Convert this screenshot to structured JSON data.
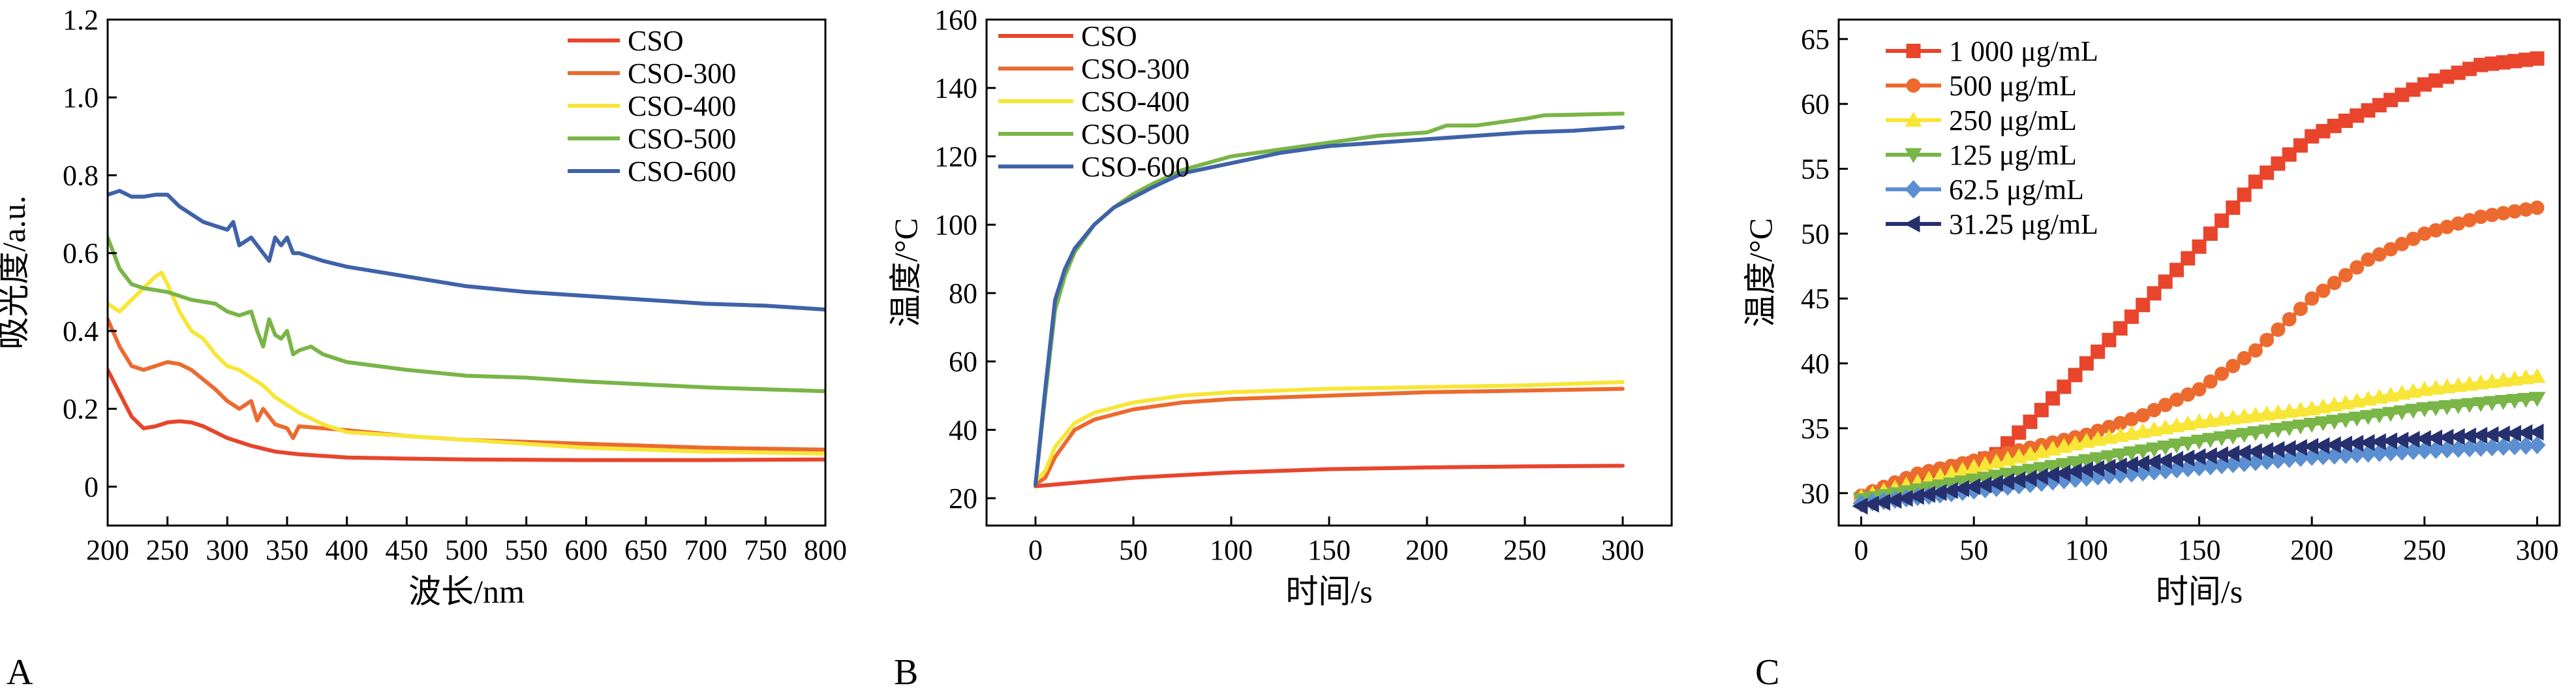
{
  "chart_data": [
    {
      "panel": "A",
      "type": "line",
      "xlabel": "波长/nm",
      "ylabel": "吸光度/a.u.",
      "xlim": [
        200,
        800
      ],
      "ylim": [
        -0.1,
        1.2
      ],
      "xticks": [
        200,
        250,
        300,
        350,
        400,
        450,
        500,
        550,
        600,
        650,
        700,
        750,
        800
      ],
      "yticks": [
        0,
        0.2,
        0.4,
        0.6,
        0.8,
        1.0,
        1.2
      ],
      "ytick_labels": [
        "0",
        "0.2",
        "0.4",
        "0.6",
        "0.8",
        "1.0",
        "1.2"
      ],
      "legend_position": "top-right",
      "colors": [
        "#e8452c",
        "#ec6a2e",
        "#f7e636",
        "#79b547",
        "#3f62a9"
      ],
      "series": [
        {
          "name": "CSO",
          "x": [
            200,
            210,
            220,
            230,
            240,
            250,
            260,
            270,
            280,
            290,
            300,
            320,
            340,
            360,
            400,
            450,
            500,
            600,
            700,
            800
          ],
          "y": [
            0.3,
            0.24,
            0.18,
            0.15,
            0.155,
            0.165,
            0.168,
            0.165,
            0.155,
            0.14,
            0.125,
            0.105,
            0.09,
            0.083,
            0.075,
            0.072,
            0.07,
            0.068,
            0.068,
            0.07
          ]
        },
        {
          "name": "CSO-300",
          "x": [
            200,
            210,
            220,
            230,
            240,
            250,
            260,
            270,
            280,
            290,
            300,
            310,
            320,
            325,
            330,
            340,
            350,
            355,
            360,
            380,
            400,
            450,
            500,
            600,
            700,
            800
          ],
          "y": [
            0.43,
            0.36,
            0.31,
            0.3,
            0.31,
            0.32,
            0.315,
            0.3,
            0.275,
            0.25,
            0.22,
            0.2,
            0.22,
            0.17,
            0.2,
            0.16,
            0.15,
            0.125,
            0.155,
            0.15,
            0.145,
            0.13,
            0.12,
            0.11,
            0.1,
            0.095
          ]
        },
        {
          "name": "CSO-400",
          "x": [
            200,
            210,
            220,
            230,
            240,
            245,
            250,
            260,
            270,
            280,
            290,
            300,
            310,
            320,
            330,
            340,
            350,
            360,
            380,
            400,
            450,
            500,
            600,
            700,
            800
          ],
          "y": [
            0.47,
            0.45,
            0.48,
            0.51,
            0.54,
            0.55,
            0.52,
            0.45,
            0.4,
            0.38,
            0.34,
            0.31,
            0.3,
            0.28,
            0.26,
            0.23,
            0.21,
            0.19,
            0.16,
            0.14,
            0.13,
            0.12,
            0.1,
            0.09,
            0.085
          ]
        },
        {
          "name": "CSO-500",
          "x": [
            200,
            210,
            220,
            230,
            250,
            270,
            290,
            300,
            310,
            320,
            325,
            330,
            335,
            340,
            345,
            350,
            355,
            360,
            370,
            380,
            400,
            450,
            500,
            550,
            600,
            700,
            800
          ],
          "y": [
            0.64,
            0.56,
            0.52,
            0.51,
            0.5,
            0.48,
            0.47,
            0.45,
            0.44,
            0.45,
            0.4,
            0.36,
            0.43,
            0.39,
            0.38,
            0.4,
            0.34,
            0.35,
            0.36,
            0.34,
            0.32,
            0.3,
            0.285,
            0.28,
            0.27,
            0.255,
            0.245
          ]
        },
        {
          "name": "CSO-600",
          "x": [
            200,
            210,
            220,
            230,
            240,
            250,
            260,
            270,
            280,
            290,
            300,
            305,
            310,
            320,
            330,
            335,
            340,
            345,
            350,
            355,
            360,
            380,
            400,
            450,
            500,
            550,
            600,
            650,
            700,
            750,
            800
          ],
          "y": [
            0.75,
            0.76,
            0.745,
            0.745,
            0.75,
            0.75,
            0.72,
            0.7,
            0.68,
            0.67,
            0.66,
            0.68,
            0.62,
            0.64,
            0.6,
            0.58,
            0.64,
            0.62,
            0.64,
            0.6,
            0.6,
            0.58,
            0.565,
            0.54,
            0.515,
            0.5,
            0.49,
            0.48,
            0.47,
            0.465,
            0.455
          ]
        }
      ]
    },
    {
      "panel": "B",
      "type": "line",
      "xlabel": "时间/s",
      "ylabel": "温度/°C",
      "xlim": [
        -25,
        325
      ],
      "ylim": [
        12,
        160
      ],
      "xticks": [
        0,
        50,
        100,
        150,
        200,
        250,
        300
      ],
      "yticks": [
        20,
        40,
        60,
        80,
        100,
        120,
        140,
        160
      ],
      "ytick_labels": [
        "20",
        "40",
        "60",
        "80",
        "100",
        "120",
        "140",
        "160"
      ],
      "legend_position": "top-left",
      "colors": [
        "#e8452c",
        "#ec6a2e",
        "#f7e636",
        "#79b547",
        "#3f62a9"
      ],
      "series": [
        {
          "name": "CSO",
          "x": [
            0,
            20,
            50,
            100,
            150,
            200,
            250,
            300
          ],
          "y": [
            23.5,
            24.5,
            26,
            27.5,
            28.5,
            29,
            29.3,
            29.5
          ]
        },
        {
          "name": "CSO-300",
          "x": [
            0,
            5,
            10,
            20,
            30,
            50,
            75,
            100,
            150,
            200,
            250,
            300
          ],
          "y": [
            24,
            26,
            32,
            40,
            43,
            46,
            48,
            49,
            50,
            51,
            51.5,
            52
          ]
        },
        {
          "name": "CSO-400",
          "x": [
            0,
            5,
            10,
            20,
            30,
            50,
            75,
            100,
            150,
            200,
            250,
            300
          ],
          "y": [
            25,
            28,
            35,
            42,
            45,
            48,
            50,
            51,
            52,
            52.5,
            53,
            54
          ]
        },
        {
          "name": "CSO-500",
          "x": [
            0,
            5,
            10,
            15,
            20,
            30,
            40,
            50,
            60,
            75,
            100,
            125,
            150,
            175,
            200,
            210,
            225,
            250,
            260,
            300
          ],
          "y": [
            24,
            50,
            75,
            85,
            92,
            100,
            105,
            109,
            112,
            116,
            120,
            122,
            124,
            126,
            127,
            129,
            129,
            131,
            132,
            132.5
          ]
        },
        {
          "name": "CSO-600",
          "x": [
            0,
            5,
            10,
            15,
            20,
            30,
            40,
            50,
            60,
            75,
            100,
            125,
            150,
            175,
            200,
            225,
            250,
            275,
            300
          ],
          "y": [
            24,
            52,
            78,
            87,
            93,
            100,
            105,
            108,
            111,
            115,
            118,
            121,
            123,
            124,
            125,
            126,
            127,
            127.5,
            128.5
          ]
        }
      ]
    },
    {
      "panel": "C",
      "type": "line",
      "xlabel": "时间/s",
      "ylabel": "温度/°C",
      "xlim": [
        -10,
        310
      ],
      "ylim": [
        27.5,
        66.5
      ],
      "xticks": [
        0,
        50,
        100,
        150,
        200,
        250,
        300
      ],
      "yticks": [
        30,
        35,
        40,
        45,
        50,
        55,
        60,
        65
      ],
      "ytick_labels": [
        "30",
        "35",
        "40",
        "45",
        "50",
        "55",
        "60",
        "65"
      ],
      "legend_position": "top-left",
      "colors": [
        "#e8452c",
        "#ec6a2e",
        "#f7e636",
        "#79b547",
        "#5b8fd1",
        "#27306e"
      ],
      "markers": [
        "square",
        "circle",
        "triangle-up",
        "triangle-down",
        "diamond",
        "triangle-left"
      ],
      "series": [
        {
          "name": "1 000 μg/mL",
          "x": [
            0,
            25,
            50,
            60,
            75,
            100,
            125,
            150,
            175,
            200,
            225,
            250,
            275,
            300
          ],
          "y": [
            29.5,
            31,
            32.3,
            33,
            35.5,
            40,
            44.5,
            49,
            54,
            57.5,
            59.5,
            61.5,
            63,
            63.5
          ]
        },
        {
          "name": "500 μg/mL",
          "x": [
            0,
            25,
            50,
            75,
            100,
            125,
            150,
            175,
            200,
            225,
            250,
            275,
            300
          ],
          "y": [
            29.8,
            31.5,
            32.5,
            33.5,
            34.5,
            36,
            38,
            41,
            45,
            48,
            50,
            51.3,
            52
          ]
        },
        {
          "name": "250 μg/mL",
          "x": [
            0,
            50,
            100,
            150,
            200,
            250,
            275,
            300
          ],
          "y": [
            29.7,
            32,
            34,
            35.5,
            36.5,
            38,
            38.5,
            39
          ]
        },
        {
          "name": "125 μg/mL",
          "x": [
            0,
            50,
            100,
            150,
            200,
            250,
            300
          ],
          "y": [
            29.5,
            31,
            32.5,
            34,
            35.3,
            36.5,
            37.3
          ]
        },
        {
          "name": "62.5 μg/mL",
          "x": [
            0,
            50,
            100,
            150,
            200,
            250,
            300
          ],
          "y": [
            29.2,
            30.2,
            31.2,
            32,
            32.8,
            33.3,
            33.7
          ]
        },
        {
          "name": "31.25 μg/mL",
          "x": [
            0,
            50,
            100,
            150,
            200,
            250,
            300
          ],
          "y": [
            29,
            30.5,
            31.8,
            32.8,
            33.6,
            34.2,
            34.7
          ]
        }
      ]
    }
  ]
}
